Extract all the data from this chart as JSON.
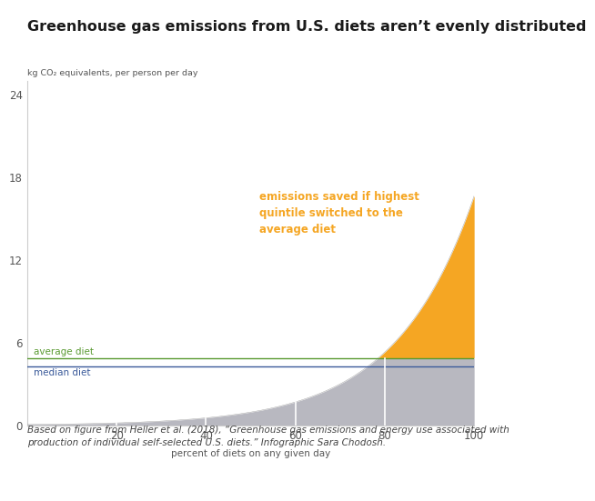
{
  "title": "Greenhouse gas emissions from U.S. diets aren’t evenly distributed",
  "ylabel": "kg CO₂ equivalents, per person per day",
  "xlabel": "percent of diets on any given day",
  "footnote": "Based on figure from Heller et al. (2018), “Greenhouse gas emissions and energy use associated with\nproduction of individual self-selected U.S. diets.” Infographic Sara Chodosh.",
  "average_diet": 4.9,
  "median_diet": 4.3,
  "ylim": [
    0,
    25
  ],
  "xlim": [
    0,
    100
  ],
  "yticks": [
    0,
    6,
    12,
    18,
    24
  ],
  "xticks": [
    20,
    40,
    60,
    80,
    100
  ],
  "curve_color": "#b8b8c0",
  "orange_color": "#f5a623",
  "average_color": "#5a9a32",
  "median_color": "#3a5a9a",
  "bg_color": "#ffffff",
  "annotation_text": "emissions saved if highest\nquintile switched to the\naverage diet",
  "annotation_color": "#f5a623",
  "vline_color": "#ffffff",
  "vline_positions": [
    20,
    40,
    60,
    80
  ],
  "title_fontsize": 11.5,
  "axis_label_fontsize": 7.5,
  "tick_fontsize": 8.5,
  "footnote_fontsize": 7.5,
  "curve_exp_scale": 17.5,
  "curve_pre_factor": 0.055
}
